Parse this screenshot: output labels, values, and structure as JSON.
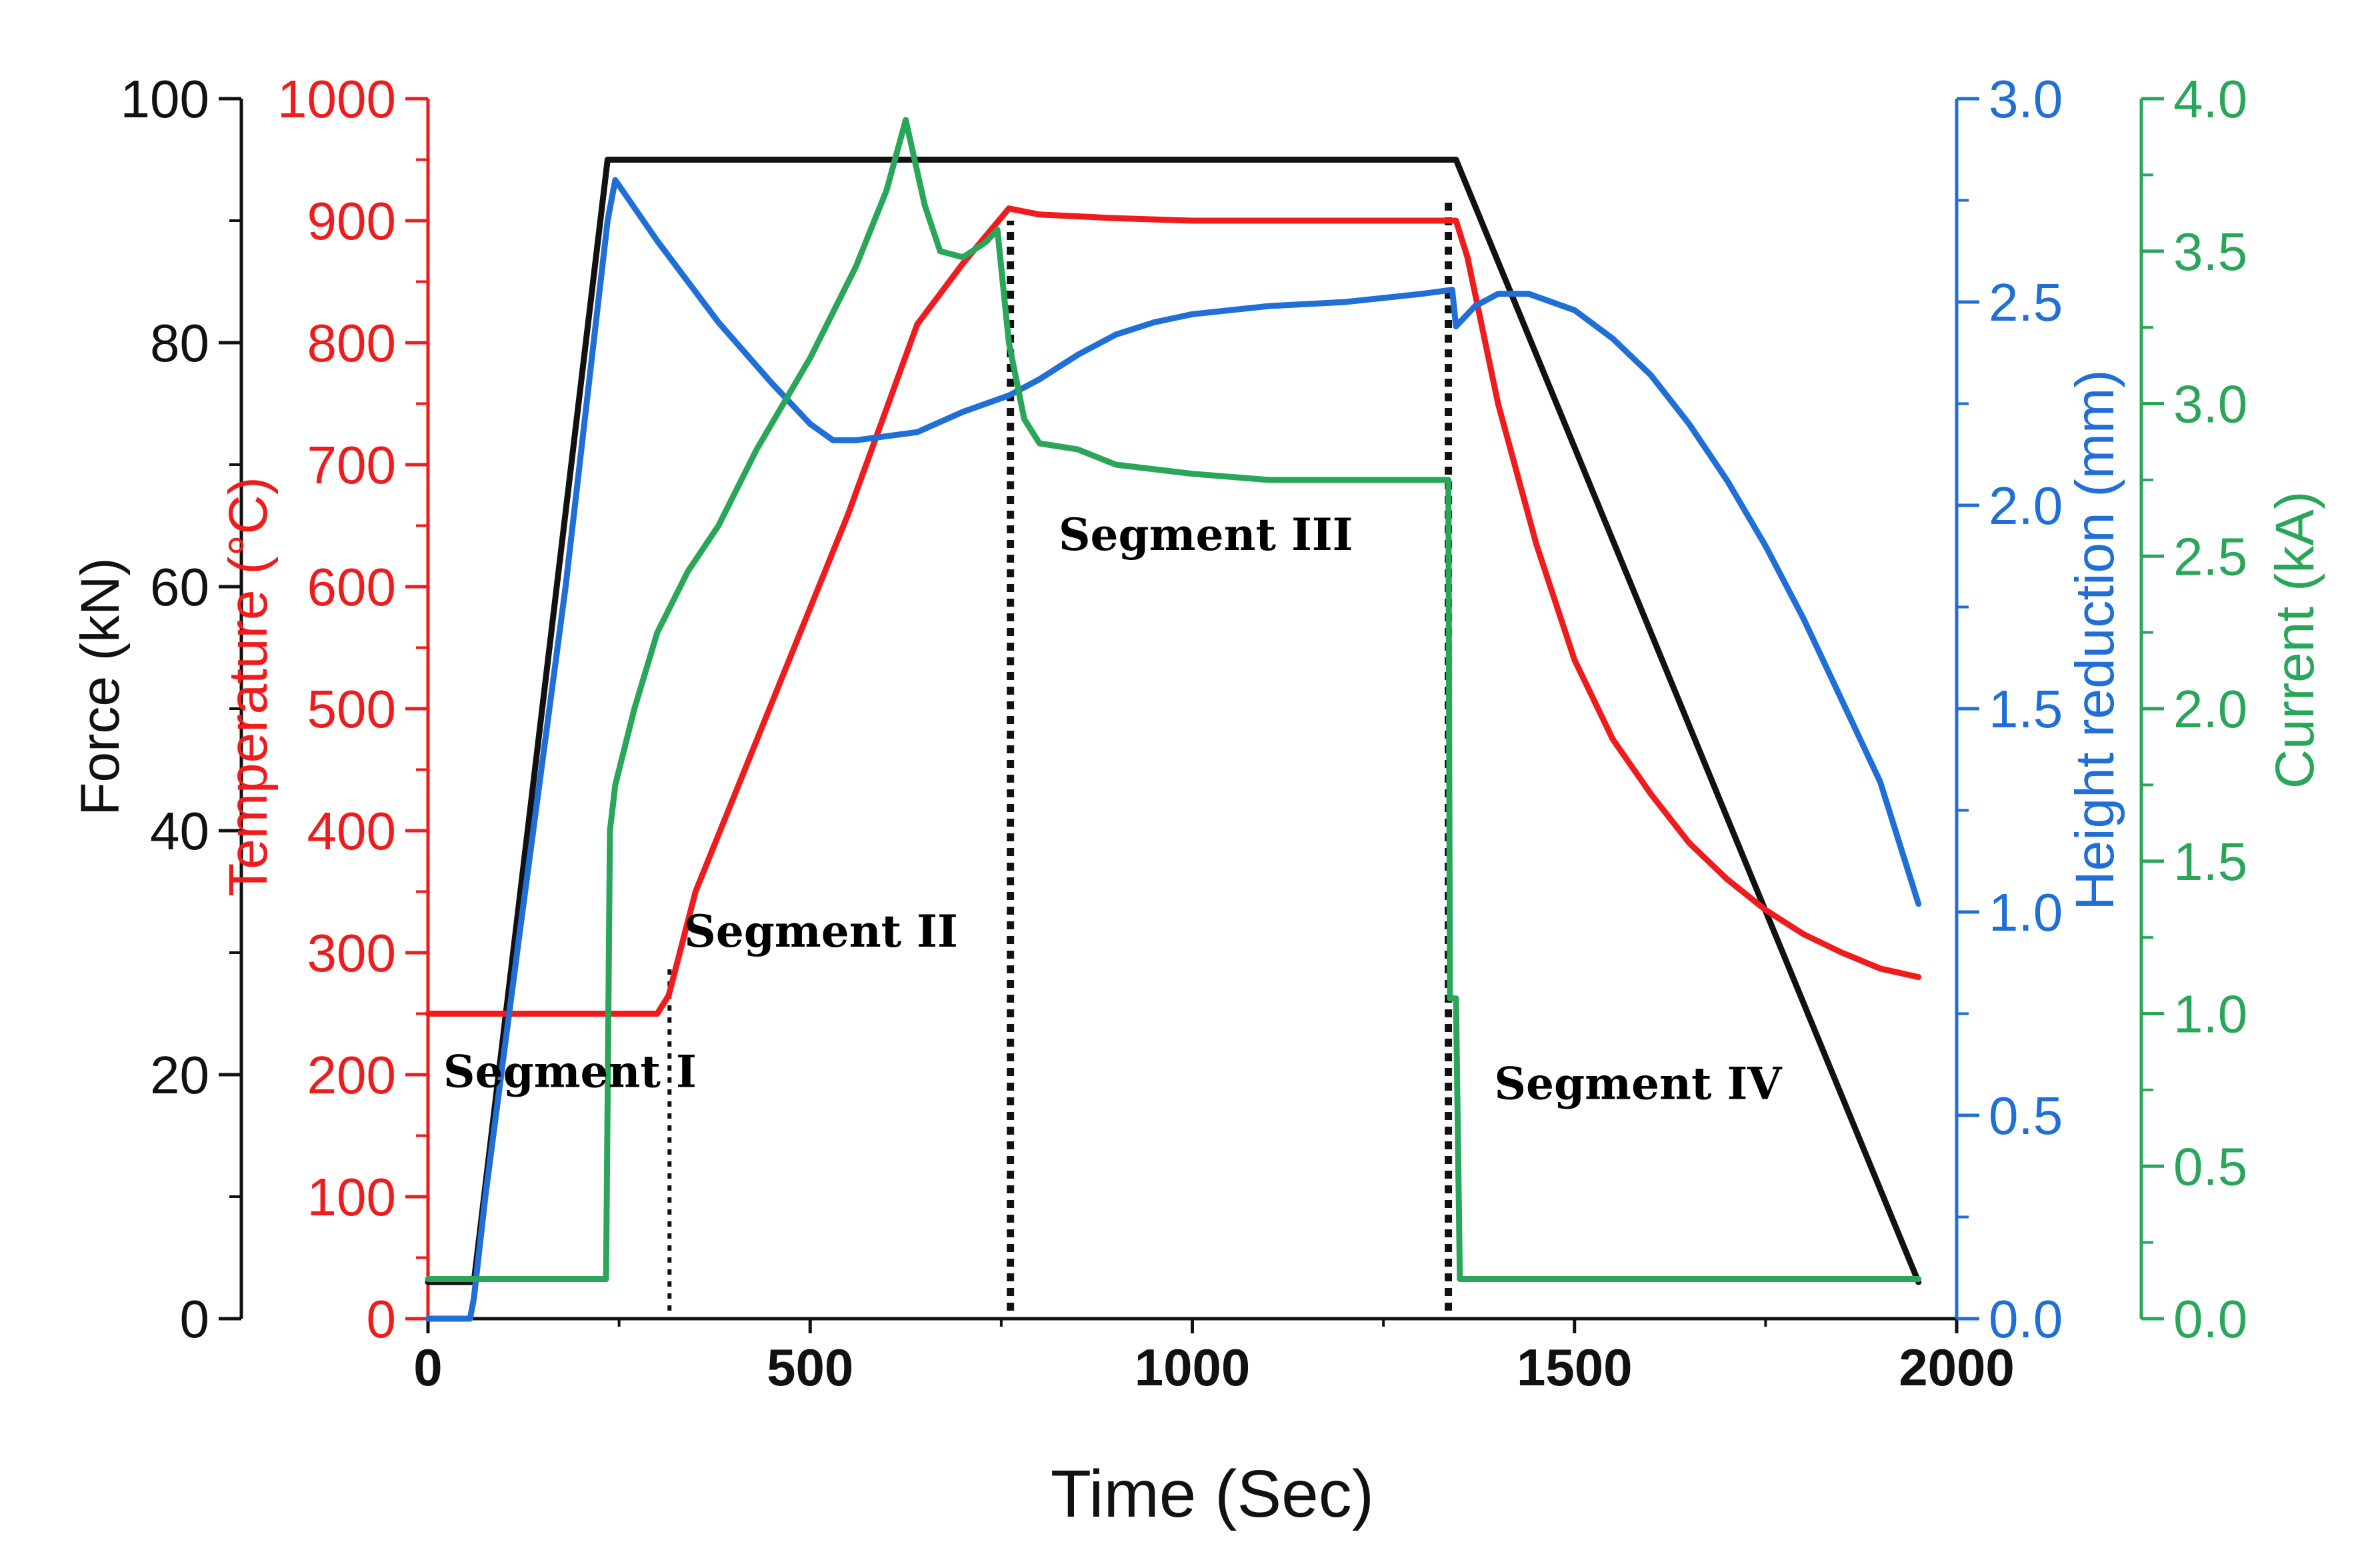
{
  "chart_data": {
    "type": "line",
    "xlabel": "Time (Sec)",
    "xlim": [
      0,
      2000
    ],
    "xticks": [
      0,
      500,
      1000,
      1500,
      2000
    ],
    "axes": [
      {
        "id": "force",
        "label": "Force (kN)",
        "color": "#111111",
        "ylim": [
          0,
          100
        ],
        "ticks": [
          0,
          20,
          40,
          60,
          80,
          100
        ],
        "tick_labels": [
          "0",
          "20",
          "40",
          "60",
          "80",
          "100"
        ]
      },
      {
        "id": "temp",
        "label": "Temperature (°C)",
        "color": "#ee1c1c",
        "ylim": [
          0,
          1000
        ],
        "ticks": [
          0,
          100,
          200,
          300,
          400,
          500,
          600,
          700,
          800,
          900,
          1000
        ],
        "tick_labels": [
          "0",
          "100",
          "200",
          "300",
          "400",
          "500",
          "600",
          "700",
          "800",
          "900",
          "1000"
        ]
      },
      {
        "id": "height",
        "label": "Height reduction (mm)",
        "color": "#1f6fd6",
        "ylim": [
          0,
          3
        ],
        "ticks": [
          0,
          0.5,
          1,
          1.5,
          2,
          2.5,
          3
        ],
        "tick_labels": [
          "0.0",
          "0.5",
          "1.0",
          "1.5",
          "2.0",
          "2.5",
          "3.0"
        ]
      },
      {
        "id": "current",
        "label": "Current (kA)",
        "color": "#2aa65a",
        "ylim": [
          0,
          4
        ],
        "ticks": [
          0,
          0.5,
          1,
          1.5,
          2,
          2.5,
          3,
          3.5,
          4
        ],
        "tick_labels": [
          "0.0",
          "0.5",
          "1.0",
          "1.5",
          "2.0",
          "2.5",
          "3.0",
          "3.5",
          "4.0"
        ]
      }
    ],
    "series": [
      {
        "name": "Force",
        "axis": "force",
        "color": "#111111",
        "x": [
          0,
          60,
          235,
          1345,
          1950
        ],
        "y": [
          3,
          3,
          95,
          95,
          3
        ]
      },
      {
        "name": "Temperature",
        "axis": "temp",
        "color": "#ee1c1c",
        "x": [
          0,
          300,
          315,
          350,
          450,
          550,
          640,
          700,
          760,
          800,
          900,
          1000,
          1100,
          1200,
          1300,
          1340,
          1345,
          1360,
          1400,
          1450,
          1500,
          1550,
          1600,
          1650,
          1700,
          1750,
          1800,
          1850,
          1900,
          1950
        ],
        "y": [
          250,
          250,
          265,
          350,
          505,
          660,
          815,
          865,
          910,
          905,
          902,
          900,
          900,
          900,
          900,
          900,
          900,
          870,
          750,
          635,
          540,
          475,
          430,
          390,
          360,
          335,
          315,
          300,
          287,
          280
        ]
      },
      {
        "name": "Height reduction",
        "axis": "height",
        "color": "#1f6fd6",
        "x": [
          0,
          55,
          60,
          75,
          120,
          180,
          235,
          245,
          300,
          380,
          450,
          500,
          530,
          560,
          640,
          700,
          760,
          800,
          850,
          900,
          950,
          1000,
          1050,
          1100,
          1200,
          1300,
          1340,
          1345,
          1370,
          1400,
          1440,
          1500,
          1550,
          1600,
          1650,
          1700,
          1750,
          1800,
          1850,
          1900,
          1950
        ],
        "y": [
          0.0,
          0.0,
          0.05,
          0.3,
          0.95,
          1.8,
          2.7,
          2.8,
          2.65,
          2.45,
          2.3,
          2.2,
          2.16,
          2.16,
          2.18,
          2.23,
          2.27,
          2.31,
          2.37,
          2.42,
          2.45,
          2.47,
          2.48,
          2.49,
          2.5,
          2.52,
          2.53,
          2.44,
          2.49,
          2.52,
          2.52,
          2.48,
          2.41,
          2.32,
          2.2,
          2.06,
          1.9,
          1.72,
          1.52,
          1.32,
          1.02
        ]
      },
      {
        "name": "Current",
        "axis": "current",
        "color": "#2aa65a",
        "x": [
          0,
          233,
          238,
          245,
          270,
          300,
          340,
          380,
          430,
          500,
          560,
          600,
          625,
          650,
          670,
          700,
          730,
          745,
          760,
          780,
          800,
          850,
          900,
          1000,
          1100,
          1200,
          1300,
          1335,
          1337,
          1345,
          1350,
          1400,
          1500,
          1600,
          1700,
          1800,
          1900,
          1950
        ],
        "y": [
          0.13,
          0.13,
          1.6,
          1.75,
          2.0,
          2.25,
          2.45,
          2.6,
          2.85,
          3.15,
          3.45,
          3.7,
          3.93,
          3.65,
          3.5,
          3.48,
          3.53,
          3.57,
          3.2,
          2.95,
          2.87,
          2.85,
          2.8,
          2.77,
          2.75,
          2.75,
          2.75,
          2.75,
          1.05,
          1.05,
          0.13,
          0.13,
          0.13,
          0.13,
          0.13,
          0.13,
          0.13,
          0.13
        ]
      }
    ],
    "dividers": [
      {
        "x": 316,
        "from_temp": 0,
        "to_temp": 290,
        "style": "fine"
      },
      {
        "x": 762,
        "from_temp": 0,
        "to_temp": 900,
        "style": "bold"
      },
      {
        "x": 1335,
        "from_temp": 0,
        "to_temp": 920,
        "style": "bold"
      }
    ],
    "annotations": [
      {
        "text": "Segment I",
        "x": 20,
        "y_temp": 190
      },
      {
        "text": "Segment II",
        "x": 335,
        "y_temp": 305
      },
      {
        "text": "Segment III",
        "x": 825,
        "y_temp": 630
      },
      {
        "text": "Segment IV",
        "x": 1395,
        "y_temp": 180
      }
    ]
  }
}
